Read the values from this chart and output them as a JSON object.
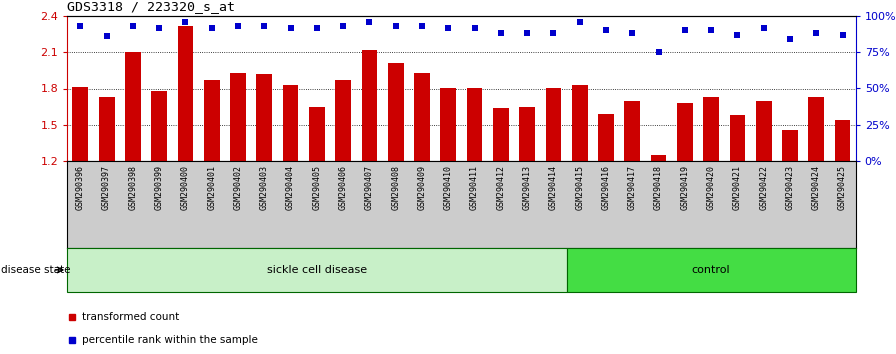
{
  "title": "GDS3318 / 223320_s_at",
  "samples": [
    "GSM290396",
    "GSM290397",
    "GSM290398",
    "GSM290399",
    "GSM290400",
    "GSM290401",
    "GSM290402",
    "GSM290403",
    "GSM290404",
    "GSM290405",
    "GSM290406",
    "GSM290407",
    "GSM290408",
    "GSM290409",
    "GSM290410",
    "GSM290411",
    "GSM290412",
    "GSM290413",
    "GSM290414",
    "GSM290415",
    "GSM290416",
    "GSM290417",
    "GSM290418",
    "GSM290419",
    "GSM290420",
    "GSM290421",
    "GSM290422",
    "GSM290423",
    "GSM290424",
    "GSM290425"
  ],
  "bar_values": [
    1.81,
    1.73,
    2.1,
    1.78,
    2.32,
    1.87,
    1.93,
    1.92,
    1.83,
    1.65,
    1.87,
    2.12,
    2.01,
    1.93,
    1.8,
    1.8,
    1.64,
    1.65,
    1.8,
    1.83,
    1.59,
    1.7,
    1.25,
    1.68,
    1.73,
    1.58,
    1.7,
    1.46,
    1.73,
    1.54
  ],
  "percentile_values": [
    93,
    86,
    93,
    92,
    96,
    92,
    93,
    93,
    92,
    92,
    93,
    96,
    93,
    93,
    92,
    92,
    88,
    88,
    88,
    96,
    90,
    88,
    75,
    90,
    90,
    87,
    92,
    84,
    88,
    87
  ],
  "bar_color": "#cc0000",
  "percentile_color": "#0000cc",
  "ylim_left": [
    1.2,
    2.4
  ],
  "ylim_right": [
    0,
    100
  ],
  "yticks_left": [
    1.2,
    1.5,
    1.8,
    2.1,
    2.4
  ],
  "yticks_right": [
    0,
    25,
    50,
    75,
    100
  ],
  "ytick_labels_right": [
    "0%",
    "25%",
    "50%",
    "75%",
    "100%"
  ],
  "sickle_count": 19,
  "sickle_label": "sickle cell disease",
  "control_label": "control",
  "disease_state_label": "disease state",
  "legend_bar_label": "transformed count",
  "legend_pct_label": "percentile rank within the sample",
  "sickle_color": "#c8f0c8",
  "control_color": "#44dd44",
  "bg_color": "#ffffff",
  "tick_bg_color": "#cccccc",
  "grid_color": "#000000",
  "spine_color": "#000000"
}
